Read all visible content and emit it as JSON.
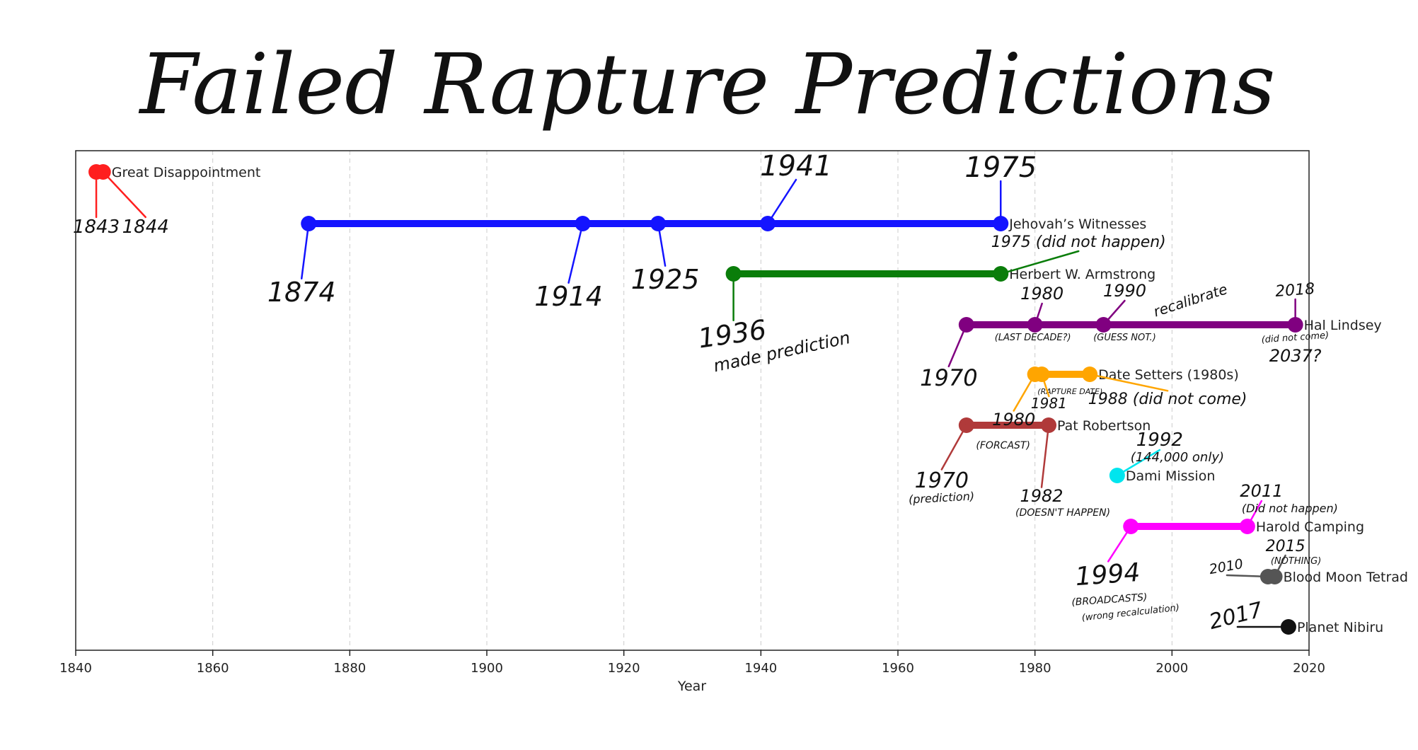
{
  "chart_data": {
    "type": "timeline",
    "title": "Failed Rapture Predictions",
    "xlabel": "Year",
    "xlim": [
      1840,
      2020
    ],
    "x_ticks": [
      1840,
      1860,
      1880,
      1900,
      1920,
      1940,
      1960,
      1980,
      2000,
      2020
    ],
    "grid": "vertical dashed",
    "series": [
      {
        "name": "Great Disappointment",
        "color": "#ff1f1f",
        "points": [
          1843,
          1844
        ]
      },
      {
        "name": "Jehovah’s Witnesses",
        "color": "#1414ff",
        "points": [
          1874,
          1914,
          1925,
          1941,
          1975
        ]
      },
      {
        "name": "Herbert W. Armstrong",
        "color": "#0a7d0a",
        "points": [
          1936,
          1975
        ]
      },
      {
        "name": "Hal Lindsey",
        "color": "#800080",
        "points": [
          1970,
          1980,
          1990,
          2018
        ]
      },
      {
        "name": "Date Setters (1980s)",
        "color": "#ffa500",
        "points": [
          1980,
          1981,
          1988
        ]
      },
      {
        "name": "Pat Robertson",
        "color": "#b03a3a",
        "points": [
          1970,
          1982
        ]
      },
      {
        "name": "Dami Mission",
        "color": "#00e5ee",
        "points": [
          1992
        ]
      },
      {
        "name": "Harold Camping",
        "color": "#ff00ff",
        "points": [
          1994,
          2011
        ]
      },
      {
        "name": "Blood Moon Tetrad",
        "color": "#555555",
        "points": [
          2014,
          2015
        ]
      },
      {
        "name": "Planet Nibiru",
        "color": "#111111",
        "points": [
          2017
        ]
      }
    ],
    "annotations": [
      {
        "text": "1843",
        "year": 1843,
        "row": 0,
        "dx": 0,
        "dy": 86,
        "size": 26,
        "rot": 0,
        "leader": true,
        "color": "#ff1f1f"
      },
      {
        "text": "1844",
        "year": 1844,
        "row": 0,
        "dx": 60,
        "dy": 86,
        "size": 26,
        "rot": 0,
        "leader": true,
        "color": "#ff1f1f"
      },
      {
        "text": "1874",
        "year": 1874,
        "row": 1,
        "dx": -10,
        "dy": 110,
        "size": 38,
        "rot": 0,
        "leader": true,
        "color": "#1414ff"
      },
      {
        "text": "1914",
        "year": 1914,
        "row": 1,
        "dx": -20,
        "dy": 116,
        "size": 38,
        "rot": 0,
        "leader": true,
        "color": "#1414ff"
      },
      {
        "text": "1925",
        "year": 1925,
        "row": 1,
        "dx": 10,
        "dy": 92,
        "size": 38,
        "rot": 0,
        "leader": true,
        "color": "#1414ff"
      },
      {
        "text": "1941",
        "year": 1941,
        "row": 1,
        "dx": 40,
        "dy": -68,
        "size": 40,
        "rot": 0,
        "leader": true,
        "color": "#1414ff"
      },
      {
        "text": "1975",
        "year": 1975,
        "row": 1,
        "dx": 0,
        "dy": -66,
        "size": 40,
        "rot": 0,
        "leader": true,
        "color": "#1414ff"
      },
      {
        "text": "1975 (did not happen)",
        "year": 1975,
        "row": 2,
        "dx": 110,
        "dy": -38,
        "size": 22,
        "rot": 0,
        "leader": true,
        "color": "#0a7d0a"
      },
      {
        "text": "1936",
        "year": 1936,
        "row": 2,
        "dx": 0,
        "dy": 98,
        "size": 38,
        "rot": -8,
        "leader": true,
        "color": "#0a7d0a"
      },
      {
        "text": "made prediction",
        "year": 1936,
        "row": 2,
        "dx": 70,
        "dy": 118,
        "size": 24,
        "rot": -12,
        "leader": false,
        "color": "#0a7d0a"
      },
      {
        "text": "1970",
        "year": 1970,
        "row": 3,
        "dx": -25,
        "dy": 86,
        "size": 32,
        "rot": 0,
        "leader": true,
        "color": "#800080"
      },
      {
        "text": "1980",
        "year": 1980,
        "row": 3,
        "dx": 10,
        "dy": -36,
        "size": 24,
        "rot": 0,
        "leader": true,
        "color": "#800080"
      },
      {
        "text": "(LAST DECADE?)",
        "year": 1980,
        "row": 3,
        "dx": -3,
        "dy": 22,
        "size": 13,
        "rot": 0,
        "leader": false,
        "color": "#800080"
      },
      {
        "text": "1990",
        "year": 1990,
        "row": 3,
        "dx": 30,
        "dy": -40,
        "size": 24,
        "rot": 0,
        "leader": true,
        "color": "#800080"
      },
      {
        "text": "(GUESS NOT.)",
        "year": 1990,
        "row": 3,
        "dx": 30,
        "dy": 22,
        "size": 13,
        "rot": 0,
        "leader": false,
        "color": "#800080"
      },
      {
        "text": "recalibrate",
        "year": 1990,
        "row": 3,
        "dx": 125,
        "dy": -28,
        "size": 20,
        "rot": -18,
        "leader": false,
        "color": "#800080"
      },
      {
        "text": "2018",
        "year": 2018,
        "row": 3,
        "dx": 0,
        "dy": -42,
        "size": 22,
        "rot": -4,
        "leader": true,
        "color": "#800080"
      },
      {
        "text": "(did not come)",
        "year": 2018,
        "row": 3,
        "dx": 0,
        "dy": 22,
        "size": 13,
        "rot": -4,
        "leader": false,
        "color": "#800080"
      },
      {
        "text": "2037?",
        "year": 2018,
        "row": 3,
        "dx": 0,
        "dy": 52,
        "size": 24,
        "rot": 0,
        "leader": false,
        "color": "#111111"
      },
      {
        "text": "(RAPTURE DATE)",
        "year": 1981,
        "row": 4,
        "dx": 40,
        "dy": 28,
        "size": 11,
        "rot": 0,
        "leader": false,
        "color": "#ffa500"
      },
      {
        "text": "1981",
        "year": 1981,
        "row": 4,
        "dx": 10,
        "dy": 48,
        "size": 20,
        "rot": 0,
        "leader": true,
        "color": "#ffa500"
      },
      {
        "text": "1988 (did not come)",
        "year": 1988,
        "row": 4,
        "dx": 110,
        "dy": 42,
        "size": 22,
        "rot": 0,
        "leader": true,
        "color": "#ffa500"
      },
      {
        "text": "1980",
        "year": 1980,
        "row": 4,
        "dx": -30,
        "dy": 72,
        "size": 24,
        "rot": 0,
        "leader": true,
        "color": "#ffa500"
      },
      {
        "text": "(FORCAST)",
        "year": 1980,
        "row": 4,
        "dx": -45,
        "dy": 105,
        "size": 14,
        "rot": 0,
        "leader": false,
        "color": "#111111"
      },
      {
        "text": "1970",
        "year": 1970,
        "row": 5,
        "dx": -35,
        "dy": 88,
        "size": 30,
        "rot": 0,
        "leader": true,
        "color": "#b03a3a"
      },
      {
        "text": "(prediction)",
        "year": 1970,
        "row": 5,
        "dx": -35,
        "dy": 108,
        "size": 16,
        "rot": -3,
        "leader": false,
        "color": "#111111"
      },
      {
        "text": "1982",
        "year": 1982,
        "row": 5,
        "dx": -10,
        "dy": 108,
        "size": 24,
        "rot": 0,
        "leader": true,
        "color": "#b03a3a"
      },
      {
        "text": "(DOESN'T HAPPEN)",
        "year": 1982,
        "row": 5,
        "dx": 20,
        "dy": 128,
        "size": 14,
        "rot": 0,
        "leader": false,
        "color": "#111111"
      },
      {
        "text": "1992",
        "year": 1992,
        "row": 6,
        "dx": 60,
        "dy": -42,
        "size": 26,
        "rot": 0,
        "leader": true,
        "color": "#00e5ee"
      },
      {
        "text": "(144,000 only)",
        "year": 1992,
        "row": 6,
        "dx": 85,
        "dy": -20,
        "size": 18,
        "rot": 0,
        "leader": false,
        "color": "#111111"
      },
      {
        "text": "2011",
        "year": 2011,
        "row": 7,
        "dx": 20,
        "dy": -42,
        "size": 24,
        "rot": 0,
        "leader": true,
        "color": "#ff00ff"
      },
      {
        "text": "(Did not happen)",
        "year": 2011,
        "row": 7,
        "dx": 60,
        "dy": -20,
        "size": 16,
        "rot": 0,
        "leader": false,
        "color": "#111111"
      },
      {
        "text": "1994",
        "year": 1994,
        "row": 7,
        "dx": -32,
        "dy": 80,
        "size": 36,
        "rot": -4,
        "leader": true,
        "color": "#ff00ff"
      },
      {
        "text": "(BROADCASTS)",
        "year": 1994,
        "row": 7,
        "dx": -30,
        "dy": 108,
        "size": 14,
        "rot": -4,
        "leader": false,
        "color": "#111111"
      },
      {
        "text": "(wrong recalculation)",
        "year": 1994,
        "row": 7,
        "dx": 0,
        "dy": 126,
        "size": 13,
        "rot": -6,
        "leader": false,
        "color": "#111111"
      },
      {
        "text": "2015",
        "year": 2015,
        "row": 8,
        "dx": 15,
        "dy": -36,
        "size": 22,
        "rot": 0,
        "leader": true,
        "color": "#555555"
      },
      {
        "text": "(NOTHING)",
        "year": 2015,
        "row": 8,
        "dx": 30,
        "dy": -18,
        "size": 13,
        "rot": 0,
        "leader": false,
        "color": "#111111"
      },
      {
        "text": "2010",
        "year": 2014,
        "row": 8,
        "dx": -58,
        "dy": -8,
        "size": 19,
        "rot": -10,
        "leader": true,
        "color": "#555555"
      },
      {
        "text": "2017",
        "year": 2017,
        "row": 9,
        "dx": -72,
        "dy": -6,
        "size": 30,
        "rot": -14,
        "leader": true,
        "color": "#111111"
      }
    ]
  }
}
